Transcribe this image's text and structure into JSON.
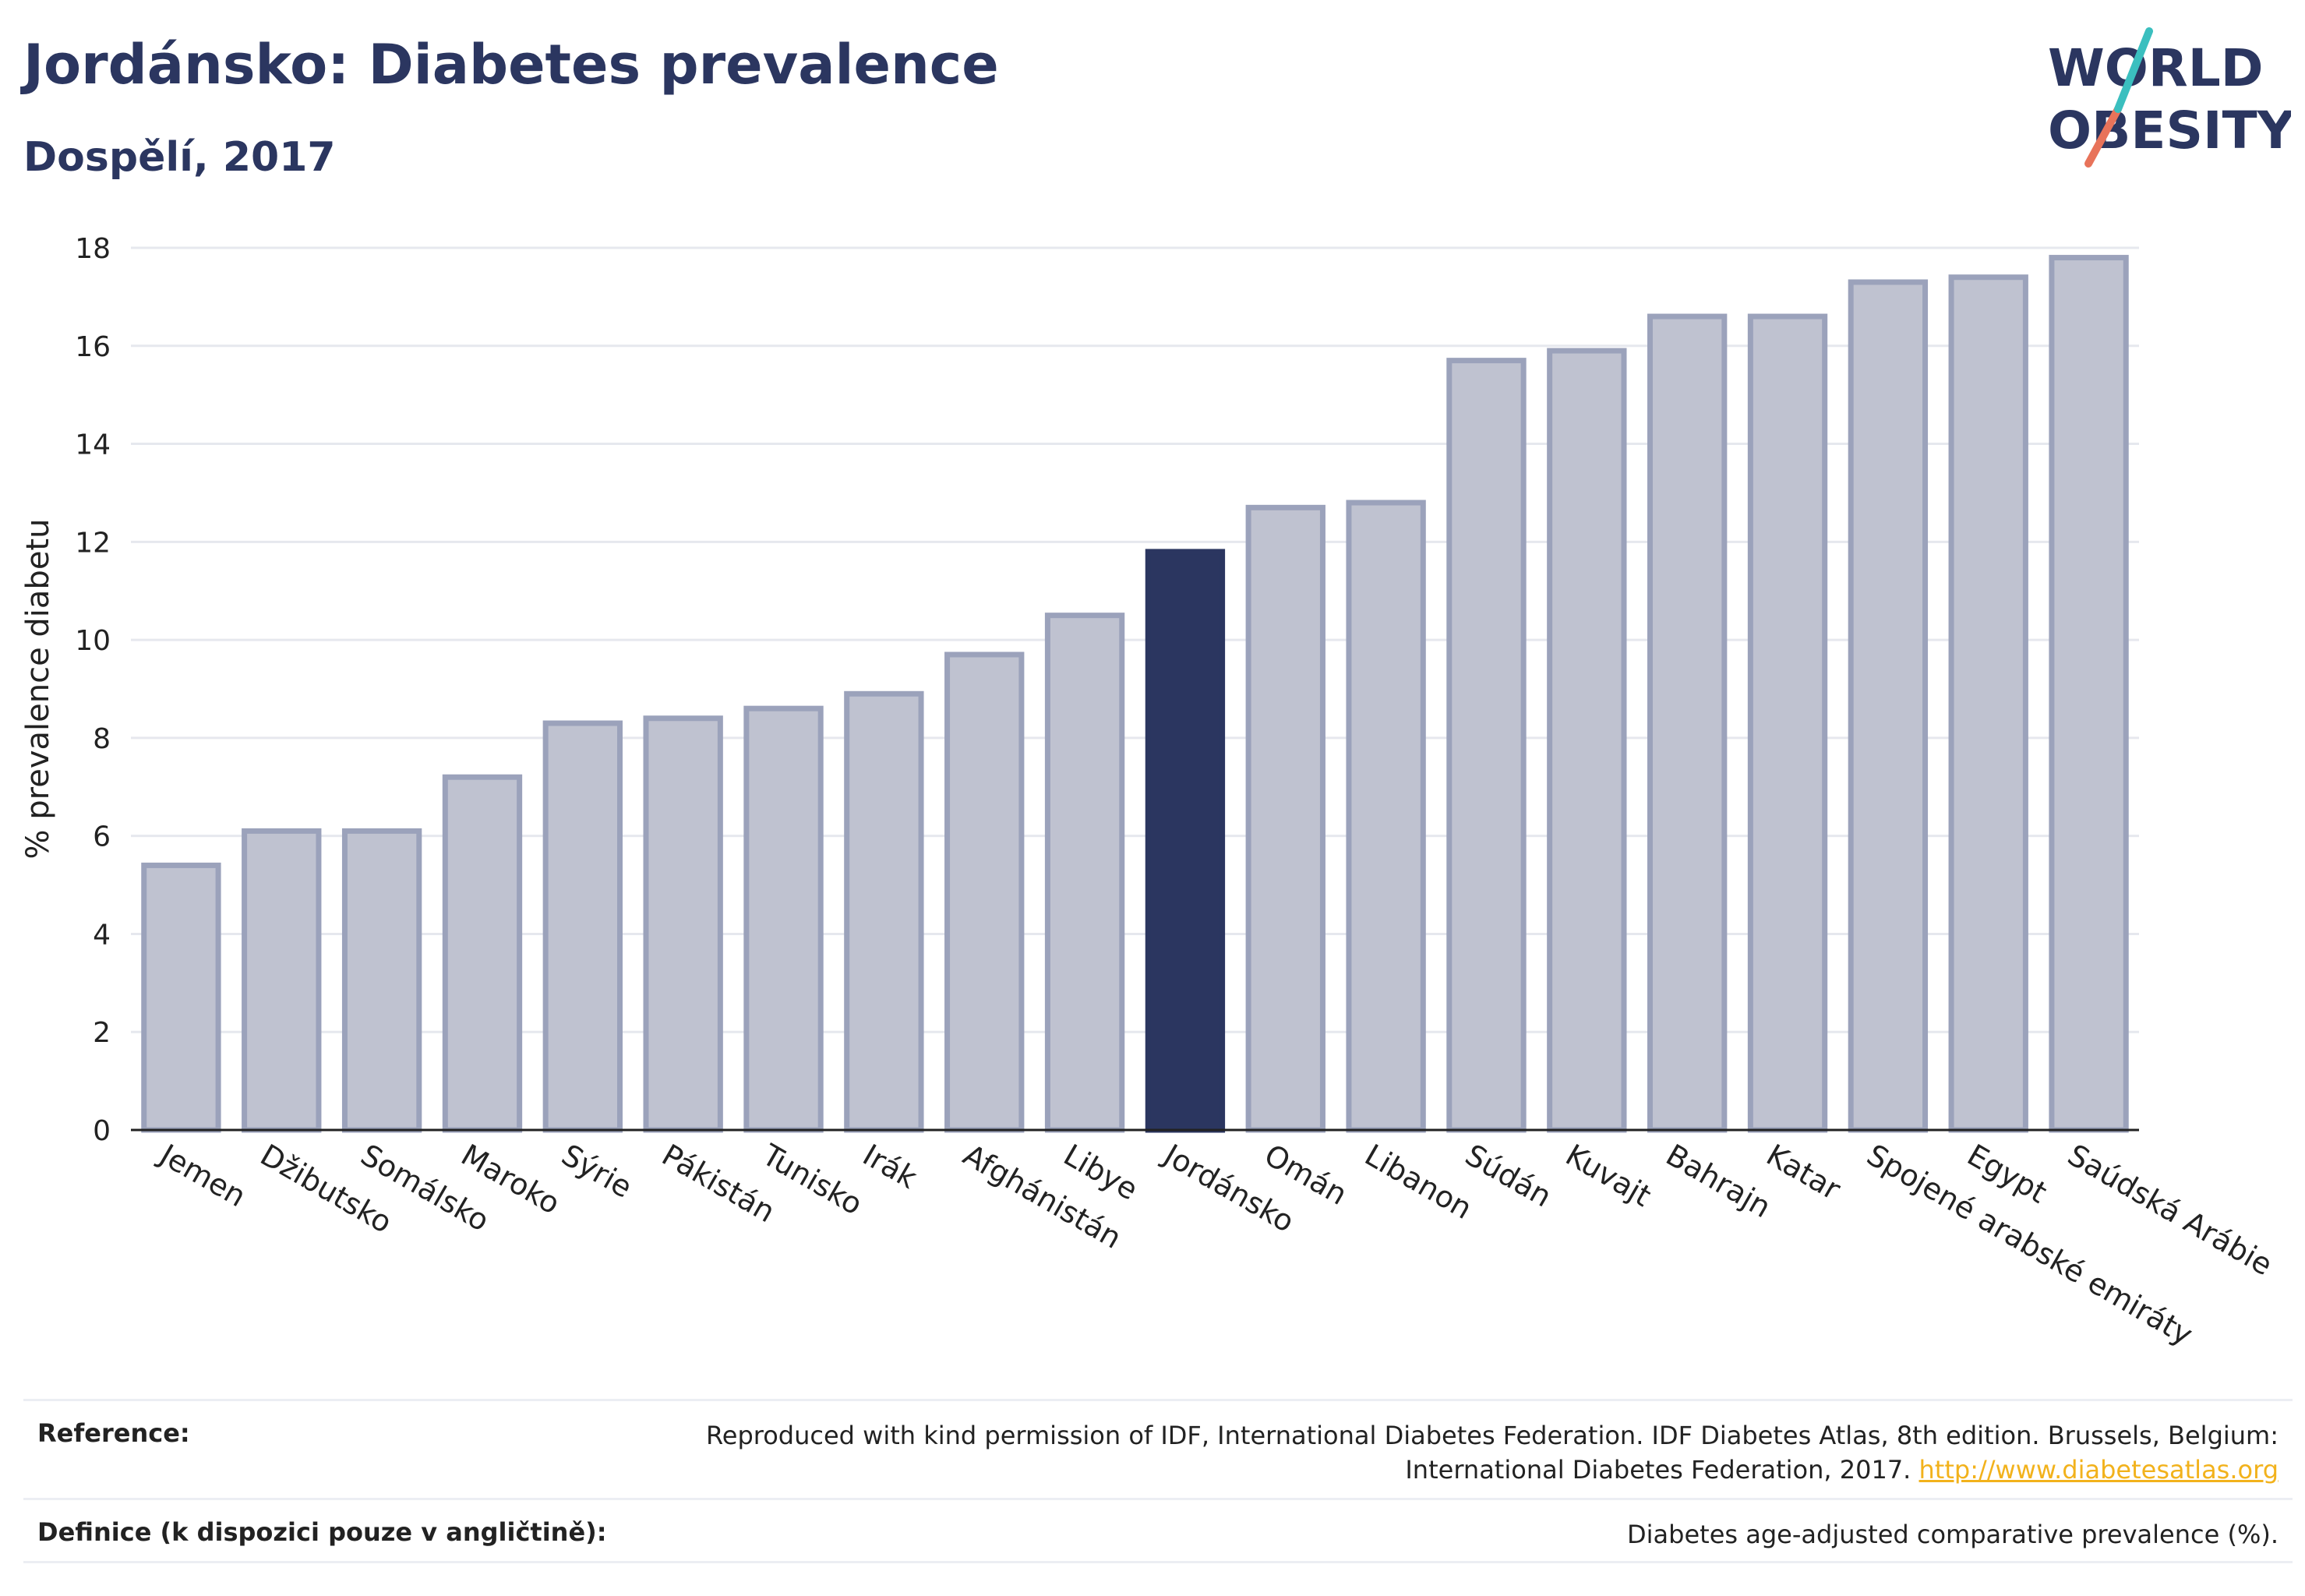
{
  "header": {
    "title": "Jordánsko: Diabetes prevalence",
    "subtitle": "Dospělí, 2017"
  },
  "logo": {
    "line1": "WORLD",
    "line2": "OBESITY",
    "colors": {
      "text": "#2b3660",
      "slash_top": "#3bbfbf",
      "slash_bottom": "#e8735a"
    }
  },
  "chart_data": {
    "type": "bar",
    "ylabel": "% prevalence diabetu",
    "xlabel": "",
    "ylim": [
      0,
      18
    ],
    "yticks": [
      0,
      2,
      4,
      6,
      8,
      10,
      12,
      14,
      16,
      18
    ],
    "grid": true,
    "highlight": "Jordánsko",
    "colors": {
      "bar": "#bfc2d0",
      "bar_border": "#9ba2bb",
      "highlight": "#2b3660"
    },
    "categories": [
      "Jemen",
      "Džibutsko",
      "Somálsko",
      "Maroko",
      "Sýrie",
      "Pákistán",
      "Tunisko",
      "Irák",
      "Afghánistán",
      "Libye",
      "Jordánsko",
      "Omán",
      "Libanon",
      "Súdán",
      "Kuvajt",
      "Bahrajn",
      "Katar",
      "Spojené arabské emiráty",
      "Egypt",
      "Saúdská Arábie"
    ],
    "values": [
      5.4,
      6.1,
      6.1,
      7.2,
      8.3,
      8.4,
      8.6,
      8.9,
      9.7,
      10.5,
      11.8,
      12.7,
      12.8,
      15.7,
      15.9,
      16.6,
      16.6,
      17.3,
      17.4,
      17.8
    ]
  },
  "footer": {
    "reference_label": "Reference:",
    "reference_text": "Reproduced with kind permission of IDF, International Diabetes Federation. IDF Diabetes Atlas, 8th edition. Brussels, Belgium:",
    "reference_text2": "International Diabetes Federation, 2017.",
    "reference_link": "http://www.diabetesatlas.org",
    "definition_label": "Definice (k dispozici pouze v angličtině):",
    "definition_text": "Diabetes age-adjusted comparative prevalence (%)."
  }
}
